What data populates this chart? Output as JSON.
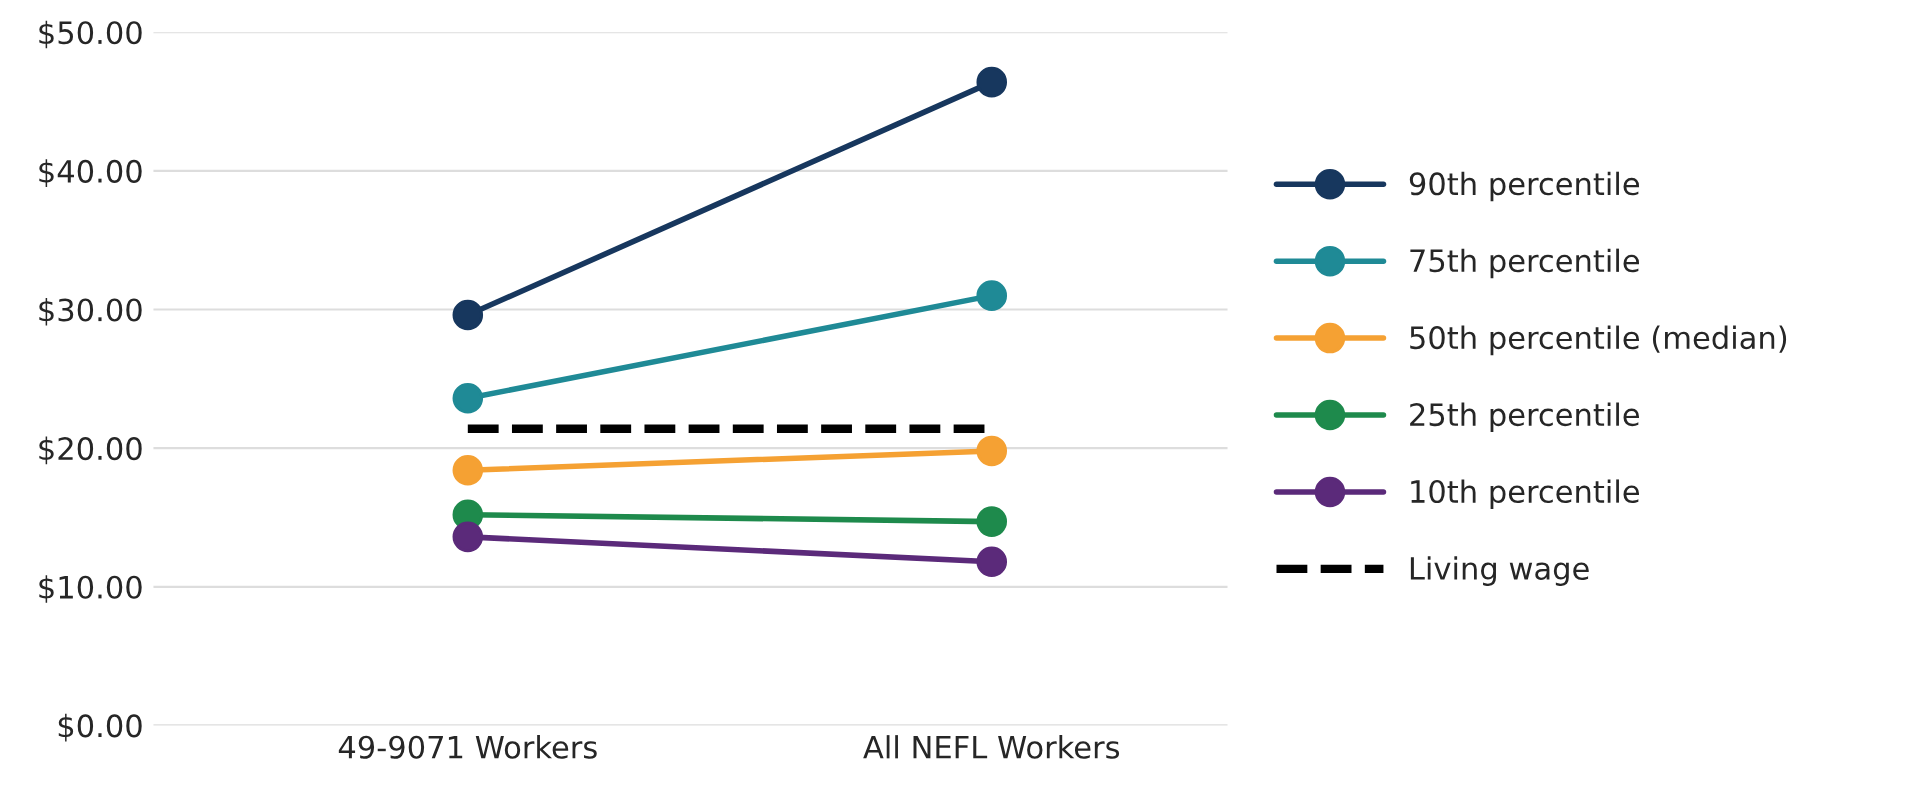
{
  "chart_data": {
    "type": "line",
    "categories": [
      "49-9071 Workers",
      "All NEFL Workers"
    ],
    "series": [
      {
        "name": "90th percentile",
        "color": "#17375e",
        "values": [
          29.6,
          46.4
        ],
        "marker": "circle"
      },
      {
        "name": "75th percentile",
        "color": "#1f8a96",
        "values": [
          23.6,
          31.0
        ],
        "marker": "circle"
      },
      {
        "name": "50th percentile (median)",
        "color": "#f5a133",
        "values": [
          18.4,
          19.8
        ],
        "marker": "circle"
      },
      {
        "name": "25th percentile",
        "color": "#1e8a4c",
        "values": [
          15.2,
          14.7
        ],
        "marker": "circle"
      },
      {
        "name": "10th percentile",
        "color": "#5b2a7a",
        "values": [
          13.6,
          11.8
        ],
        "marker": "circle"
      },
      {
        "name": "Living wage",
        "color": "#000000",
        "values": [
          21.4,
          21.4
        ],
        "marker": "none",
        "line_style": "dashed"
      }
    ],
    "ylim": [
      0,
      50
    ],
    "yticks": [
      {
        "value": 0,
        "label": "$0.00"
      },
      {
        "value": 10,
        "label": "$10.00"
      },
      {
        "value": 20,
        "label": "$20.00"
      },
      {
        "value": 30,
        "label": "$30.00"
      },
      {
        "value": 40,
        "label": "$40.00"
      },
      {
        "value": 50,
        "label": "$50.00"
      }
    ],
    "grid": "y",
    "legend": "right"
  }
}
